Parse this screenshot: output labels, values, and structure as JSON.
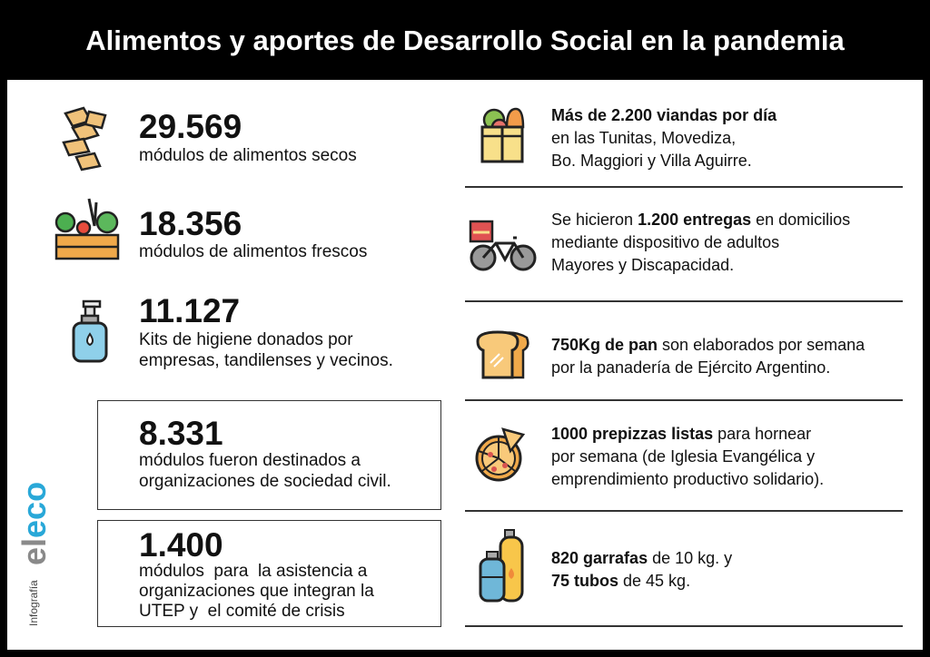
{
  "title": "Alimentos y aportes de Desarrollo Social en la pandemia",
  "left": [
    {
      "number": "29.569",
      "lines": [
        "módulos de alimentos secos"
      ],
      "icon": "pasta-icon"
    },
    {
      "number": "18.356",
      "lines": [
        "módulos de alimentos frescos"
      ],
      "icon": "vegetable-crate-icon"
    },
    {
      "number": "11.127",
      "lines": [
        "Kits de higiene donados por",
        "empresas, tandilenses y vecinos."
      ],
      "icon": "soap-dispenser-icon"
    },
    {
      "number": "8.331",
      "lines": [
        "módulos fueron destinados a",
        "organizaciones de sociedad civil."
      ]
    },
    {
      "number": "1.400",
      "lines": [
        "módulos  para  la asistencia a",
        "organizaciones que integran la",
        "UTEP y  el comité de crisis"
      ]
    }
  ],
  "right": [
    {
      "bold1": "Más de 2.200 viandas por día",
      "l2": "en las Tunitas, Movediza,",
      "l3": "Bo. Maggiori y Villa Aguirre."
    },
    {
      "pre": "Se hicieron ",
      "bold": "1.200 entregas",
      "post": " en domicilios",
      "l2": "mediante dispositivo de adultos",
      "l3": "Mayores y Discapacidad."
    },
    {
      "bold": "750Kg de pan",
      "post": " son elaborados por semana",
      "l2": "por la panadería de Ejército Argentino."
    },
    {
      "bold": "1000 prepizzas listas",
      "post": " para hornear",
      "l2": "por semana (de Iglesia Evangélica y",
      "l3": "emprendimiento productivo solidario)."
    },
    {
      "bold": "820 garrafas",
      "post": " de 10 kg. y",
      "bold2": "75 tubos",
      "post2": " de 45 kg."
    }
  ],
  "branding": {
    "logo": "eleco",
    "label": "Infografía"
  },
  "colors": {
    "logo_gray": "#8a8a8a",
    "logo_blue": "#29a8d8"
  }
}
